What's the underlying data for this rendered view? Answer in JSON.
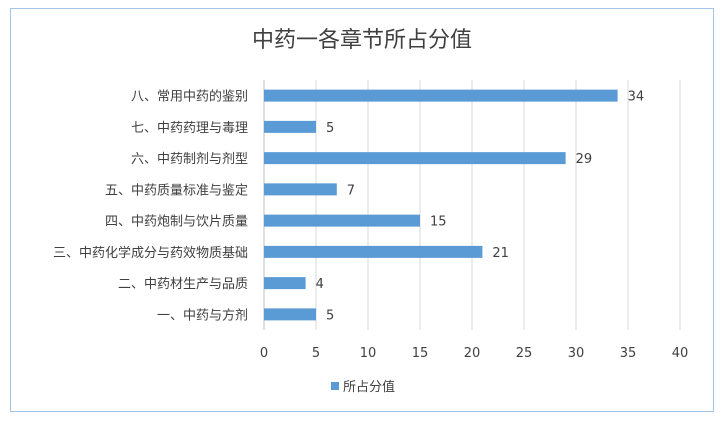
{
  "chart_data": {
    "type": "bar",
    "orientation": "horizontal",
    "title": "中药一各章节所占分值",
    "categories": [
      "八、常用中药的鉴别",
      "七、中药药理与毒理",
      "六、中药制剂与剂型",
      "五、中药质量标准与鉴定",
      "四、中药炮制与饮片质量",
      "三、中药化学成分与药效物质基础",
      "二、中药材生产与品质",
      "一、中药与方剂"
    ],
    "series": [
      {
        "name": "所占分值",
        "values": [
          34,
          5,
          29,
          7,
          15,
          21,
          4,
          5
        ],
        "color": "#5b9bd5"
      }
    ],
    "xlim": [
      0,
      40
    ],
    "xticks": [
      0,
      5,
      10,
      15,
      20,
      25,
      30,
      35,
      40
    ],
    "grid": true,
    "legend_position": "bottom",
    "data_labels": true
  }
}
